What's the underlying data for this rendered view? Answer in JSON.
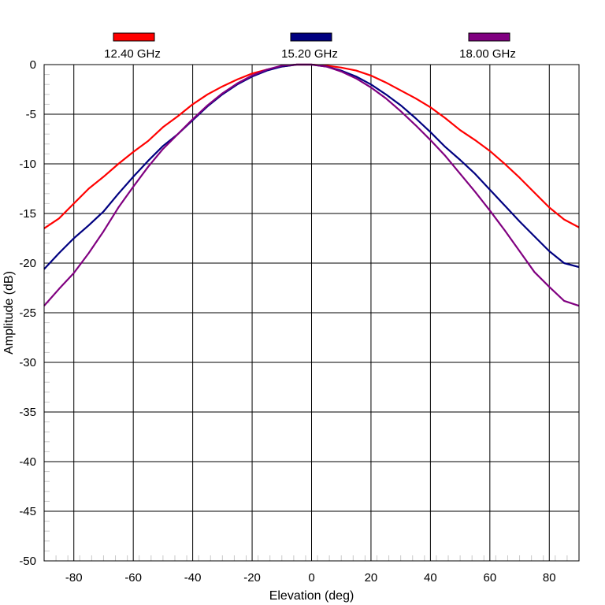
{
  "chart_data": {
    "type": "line",
    "xlabel": "Elevation (deg)",
    "ylabel": "Amplitude (dB)",
    "xlim": [
      -90,
      90
    ],
    "ylim": [
      -50,
      0
    ],
    "xticks": [
      -80,
      -60,
      -40,
      -20,
      0,
      20,
      40,
      60,
      80
    ],
    "yticks": [
      0,
      -5,
      -10,
      -15,
      -20,
      -25,
      -30,
      -35,
      -40,
      -45,
      -50
    ],
    "xtick_labels": [
      "-80",
      "-60",
      "-40",
      "-20",
      "0",
      "20",
      "40",
      "60",
      "80"
    ],
    "ytick_labels": [
      "0",
      "-5",
      "-10",
      "-15",
      "-20",
      "-25",
      "-30",
      "-35",
      "-40",
      "-45",
      "-50"
    ],
    "grid": true,
    "legend_position": "top",
    "series": [
      {
        "name": "12.40 GHz",
        "color": "#ff0000",
        "x": [
          -90,
          -85,
          -80,
          -75,
          -70,
          -65,
          -60,
          -55,
          -50,
          -45,
          -40,
          -35,
          -30,
          -25,
          -20,
          -15,
          -10,
          -5,
          0,
          5,
          10,
          15,
          20,
          25,
          30,
          35,
          40,
          45,
          50,
          55,
          60,
          65,
          70,
          75,
          80,
          85,
          90
        ],
        "y": [
          -16.5,
          -15.5,
          -14.0,
          -12.5,
          -11.3,
          -10.0,
          -8.8,
          -7.7,
          -6.3,
          -5.2,
          -4.0,
          -3.0,
          -2.2,
          -1.5,
          -0.9,
          -0.5,
          -0.2,
          0.0,
          0.0,
          -0.1,
          -0.3,
          -0.6,
          -1.1,
          -1.8,
          -2.6,
          -3.4,
          -4.3,
          -5.4,
          -6.6,
          -7.6,
          -8.7,
          -10.0,
          -11.4,
          -12.9,
          -14.4,
          -15.6,
          -16.4
        ]
      },
      {
        "name": "15.20 GHz",
        "color": "#000080",
        "x": [
          -90,
          -85,
          -80,
          -75,
          -70,
          -65,
          -60,
          -55,
          -50,
          -45,
          -40,
          -35,
          -30,
          -25,
          -20,
          -15,
          -10,
          -5,
          0,
          5,
          10,
          15,
          20,
          25,
          30,
          35,
          40,
          45,
          50,
          55,
          60,
          65,
          70,
          75,
          80,
          85,
          90
        ],
        "y": [
          -20.6,
          -19.0,
          -17.5,
          -16.2,
          -14.8,
          -13.0,
          -11.3,
          -9.7,
          -8.2,
          -7.0,
          -5.6,
          -4.2,
          -3.0,
          -2.0,
          -1.2,
          -0.6,
          -0.2,
          0.0,
          0.0,
          -0.2,
          -0.6,
          -1.2,
          -2.0,
          -3.0,
          -4.1,
          -5.4,
          -6.8,
          -8.3,
          -9.6,
          -11.0,
          -12.6,
          -14.2,
          -15.8,
          -17.3,
          -18.8,
          -20.0,
          -20.4
        ]
      },
      {
        "name": "18.00 GHz",
        "color": "#800080",
        "x": [
          -90,
          -85,
          -80,
          -75,
          -70,
          -65,
          -60,
          -55,
          -50,
          -45,
          -40,
          -35,
          -30,
          -25,
          -20,
          -15,
          -10,
          -5,
          0,
          5,
          10,
          15,
          20,
          25,
          30,
          35,
          40,
          45,
          50,
          55,
          60,
          65,
          70,
          75,
          80,
          85,
          90
        ],
        "y": [
          -24.3,
          -22.6,
          -21.0,
          -19.0,
          -16.8,
          -14.4,
          -12.3,
          -10.3,
          -8.5,
          -7.0,
          -5.5,
          -4.1,
          -2.9,
          -1.9,
          -1.1,
          -0.5,
          -0.1,
          0.0,
          0.0,
          -0.2,
          -0.7,
          -1.4,
          -2.3,
          -3.4,
          -4.7,
          -6.1,
          -7.6,
          -9.2,
          -11.0,
          -12.8,
          -14.7,
          -16.7,
          -18.8,
          -20.9,
          -22.4,
          -23.8,
          -24.3
        ]
      }
    ]
  }
}
